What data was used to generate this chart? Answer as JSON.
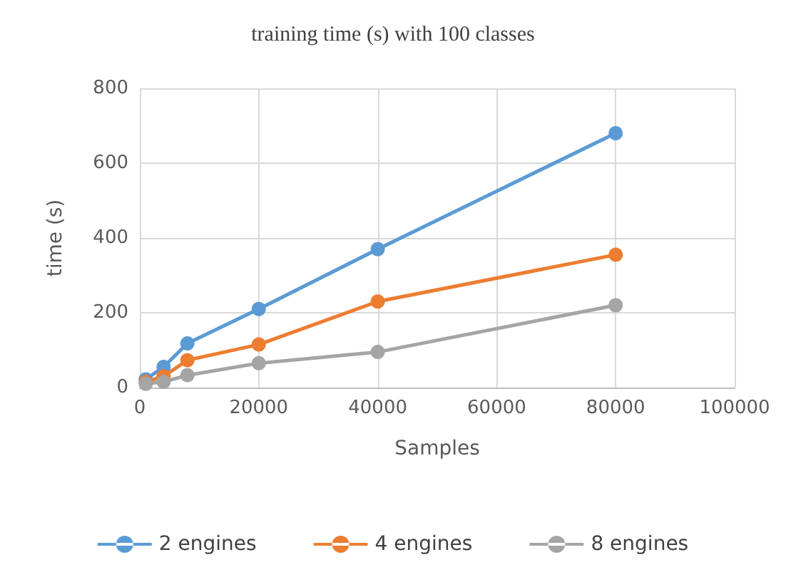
{
  "chart_data": {
    "type": "line",
    "title": "training time (s) with 100 classes",
    "xlabel": "Samples",
    "ylabel": "time (s)",
    "x": [
      1000,
      4000,
      8000,
      20000,
      40000,
      80000
    ],
    "series": [
      {
        "name": "2 engines",
        "color": "#5b9bd5",
        "values": [
          22,
          55,
          118,
          210,
          370,
          680
        ]
      },
      {
        "name": "4 engines",
        "color": "#ed7d31",
        "values": [
          15,
          30,
          73,
          115,
          230,
          355
        ]
      },
      {
        "name": "8 engines",
        "color": "#a5a5a5",
        "values": [
          10,
          15,
          33,
          65,
          95,
          220
        ]
      }
    ],
    "xlim": [
      0,
      100000
    ],
    "xticks": [
      0,
      20000,
      40000,
      60000,
      80000,
      100000
    ],
    "ylim": [
      0,
      800
    ],
    "yticks": [
      0,
      200,
      400,
      600,
      800
    ],
    "grid": true,
    "legend": "bottom",
    "marker": "circle",
    "line_style": "solid"
  }
}
